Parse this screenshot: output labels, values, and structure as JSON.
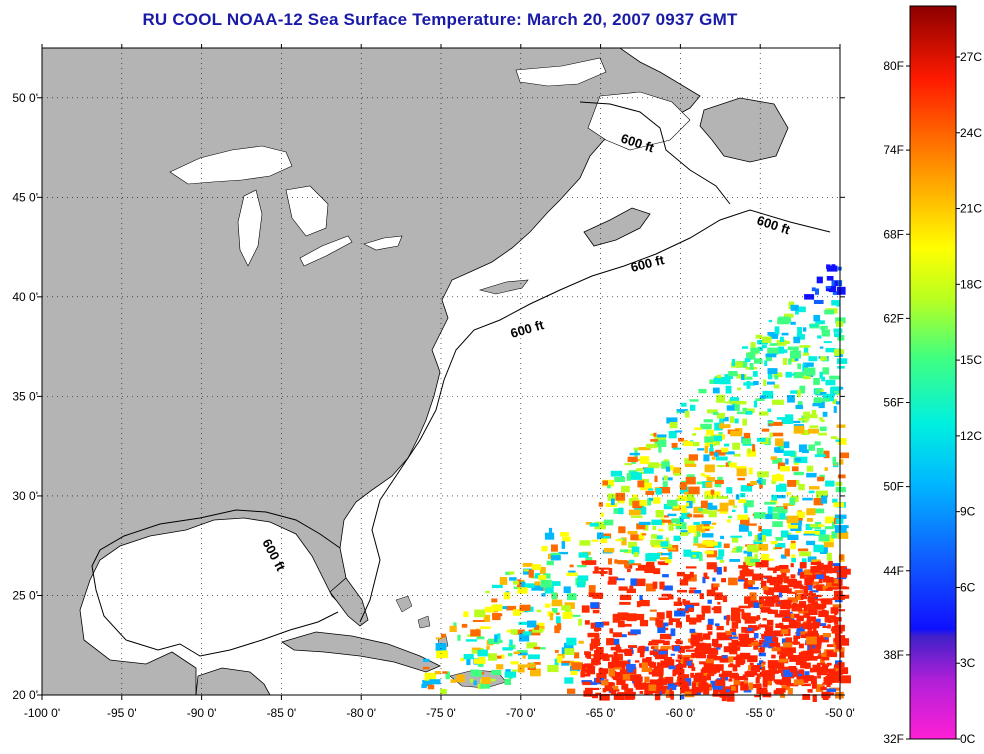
{
  "title": "RU COOL  NOAA-12  Sea Surface Temperature:  March 20, 2007 0937 GMT",
  "map": {
    "lon_range": [
      -100,
      -50
    ],
    "lat_range": [
      20,
      52.5
    ],
    "lon_ticks": [
      "-100 0'",
      "-95 0'",
      "-90 0'",
      "-85 0'",
      "-80 0'",
      "-75 0'",
      "-70 0'",
      "-65 0'",
      "-60 0'",
      "-55 0'",
      "-50 0'"
    ],
    "lat_ticks": [
      "20 0'",
      "25 0'",
      "30 0'",
      "35 0'",
      "40 0'",
      "45 0'",
      "50 0'"
    ],
    "contour_labels": [
      "600 ft",
      "600 ft",
      "600 ft",
      "600 ft",
      "600 ft"
    ],
    "land_color": "#b4b4b4",
    "water_color": "#ffffff"
  },
  "colorbar": {
    "fahrenheit_labels": [
      "80F",
      "74F",
      "68F",
      "62F",
      "56F",
      "50F",
      "44F",
      "38F",
      "32F"
    ],
    "celsius_labels": [
      "27C",
      "24C",
      "21C",
      "18C",
      "15C",
      "12C",
      "9C",
      "6C",
      "3C",
      "0C"
    ]
  }
}
